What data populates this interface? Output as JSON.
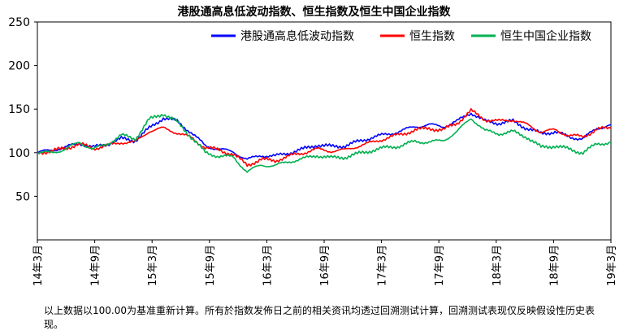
{
  "chart_data": {
    "type": "line",
    "title": "港股通高息低波动指数、恒生指数及恒生中国企业指数",
    "xlabel": "",
    "ylabel": "",
    "ylim": [
      0,
      250
    ],
    "yticks": [
      50,
      100,
      150,
      200,
      250
    ],
    "grid": false,
    "legend_position": "top-right",
    "x_ticks": [
      "14年3月",
      "14年9月",
      "15年3月",
      "15年9月",
      "16年3月",
      "16年9月",
      "17年3月",
      "17年9月",
      "18年3月",
      "18年9月",
      "19年3月"
    ],
    "series": [
      {
        "name": "港股通高息低波动指数",
        "color": "#0000ff",
        "values": [
          100,
          103,
          106,
          111,
          106,
          110,
          116,
          114,
          128,
          140,
          136,
          123,
          108,
          104,
          101,
          92,
          97,
          96,
          100,
          104,
          109,
          107,
          108,
          113,
          118,
          121,
          125,
          130,
          132,
          130,
          136,
          146,
          136,
          134,
          136,
          128,
          122,
          124,
          118,
          116,
          128,
          132
        ]
      },
      {
        "name": "恒生指数",
        "color": "#ff0000",
        "values": [
          100,
          102,
          105,
          110,
          105,
          108,
          112,
          112,
          125,
          128,
          123,
          117,
          106,
          103,
          98,
          86,
          92,
          91,
          96,
          100,
          104,
          102,
          103,
          108,
          112,
          117,
          121,
          126,
          128,
          126,
          134,
          148,
          138,
          136,
          138,
          132,
          124,
          126,
          120,
          118,
          127,
          128
        ]
      },
      {
        "name": "恒生中国企业指数",
        "color": "#00b050",
        "values": [
          100,
          100,
          104,
          112,
          104,
          110,
          120,
          116,
          138,
          145,
          135,
          118,
          100,
          96,
          95,
          78,
          86,
          85,
          90,
          93,
          97,
          94,
          95,
          99,
          103,
          106,
          108,
          113,
          112,
          114,
          124,
          140,
          125,
          122,
          124,
          118,
          106,
          108,
          104,
          100,
          110,
          112
        ]
      }
    ]
  },
  "footnote": "以上数据以100.00为基准重新计算。所有於指数发佈日之前的相关资讯均透过回溯测试计算，回溯测试表现仅反映假设性历史表现。",
  "colors": {
    "axis": "#000000",
    "background": "#ffffff"
  }
}
